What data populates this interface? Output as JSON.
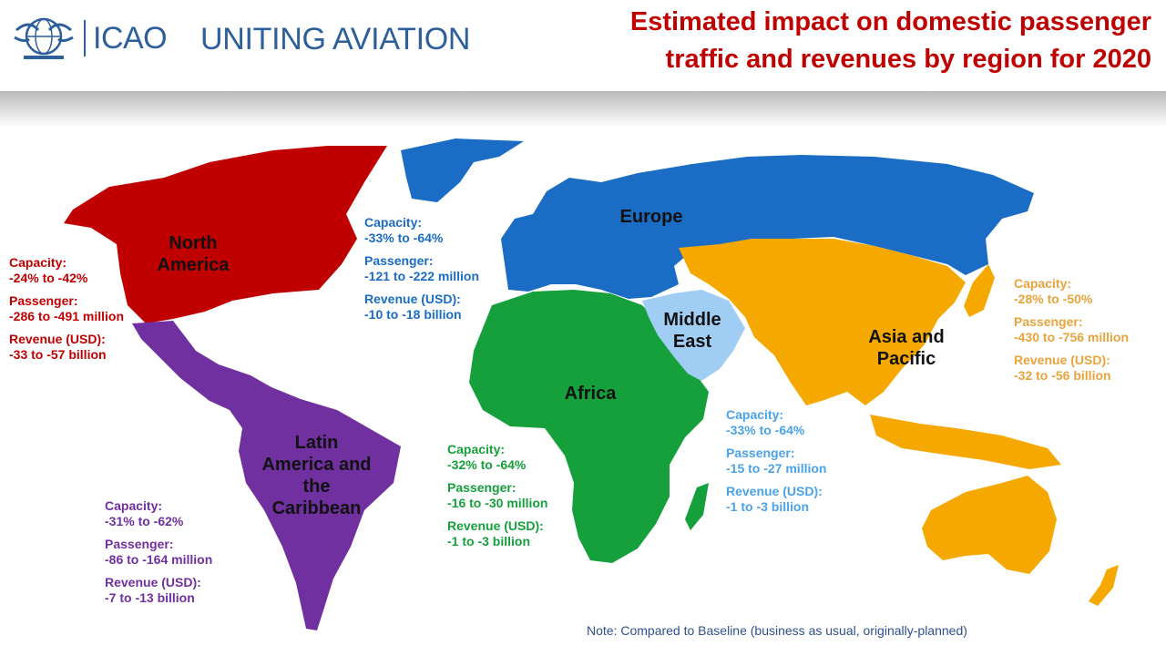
{
  "header": {
    "logo_text": "ICAO",
    "tagline": "UNITING AVIATION",
    "title_line1": "Estimated impact on domestic passenger",
    "title_line2": "traffic and revenues by region for 2020"
  },
  "colors": {
    "north_america": "#c00000",
    "latin_america": "#7030a0",
    "europe": "#1a6cc4",
    "africa": "#15a03c",
    "middle_east": "#9fcdf4",
    "asia_pacific": "#f5a900",
    "middle_east_text": "#4aa3e8",
    "asia_text": "#e8a33c",
    "note": "#2f4f8f"
  },
  "regions": {
    "north_america": {
      "label_lines": [
        "North",
        "America"
      ],
      "capacity_label": "Capacity:",
      "capacity": "-24% to -42%",
      "passenger_label": "Passenger:",
      "passenger": "-286 to -491 million",
      "revenue_label": "Revenue (USD):",
      "revenue": "-33 to -57 billion"
    },
    "europe": {
      "label_lines": [
        "Europe"
      ],
      "capacity_label": "Capacity:",
      "capacity": "-33% to -64%",
      "passenger_label": "Passenger:",
      "passenger": "-121 to -222 million",
      "revenue_label": "Revenue (USD):",
      "revenue": "-10 to -18 billion"
    },
    "middle_east": {
      "label_lines": [
        "Middle",
        "East"
      ],
      "capacity_label": "Capacity:",
      "capacity": "-33% to -64%",
      "passenger_label": "Passenger:",
      "passenger": "-15 to -27 million",
      "revenue_label": "Revenue (USD):",
      "revenue": "-1 to -3 billion"
    },
    "asia_pacific": {
      "label_lines": [
        "Asia and",
        "Pacific"
      ],
      "capacity_label": "Capacity:",
      "capacity": "-28% to -50%",
      "passenger_label": "Passenger:",
      "passenger": "-430 to -756 million",
      "revenue_label": "Revenue (USD):",
      "revenue": "-32 to -56 billion"
    },
    "africa": {
      "label_lines": [
        "Africa"
      ],
      "capacity_label": "Capacity:",
      "capacity": "-32% to -64%",
      "passenger_label": "Passenger:",
      "passenger": "-16 to -30 million",
      "revenue_label": "Revenue (USD):",
      "revenue": "-1 to -3 billion"
    },
    "latin_america": {
      "label_lines": [
        "Latin",
        "America and",
        "the",
        "Caribbean"
      ],
      "capacity_label": "Capacity:",
      "capacity": "-31% to -62%",
      "passenger_label": "Passenger:",
      "passenger": "-86 to -164 million",
      "revenue_label": "Revenue (USD):",
      "revenue": "-7 to -13 billion"
    }
  },
  "note": "Note: Compared to Baseline (business as usual, originally-planned)"
}
